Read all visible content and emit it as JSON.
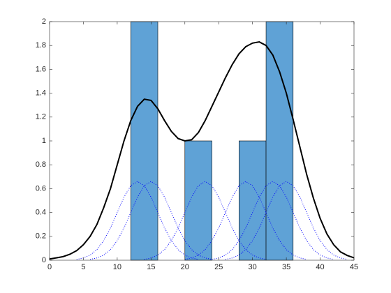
{
  "chart_data": {
    "type": "histogram",
    "bins": [
      12,
      16,
      20,
      24,
      28,
      32,
      36
    ],
    "counts": [
      2,
      0,
      1,
      0,
      1,
      2
    ],
    "color": "#5fa2d6",
    "density": {
      "color": "#000000",
      "x": [
        0,
        1,
        2,
        3,
        4,
        5,
        6,
        7,
        8,
        9,
        10,
        11,
        12,
        13,
        14,
        15,
        16,
        17,
        18,
        19,
        20,
        21,
        22,
        23,
        24,
        25,
        26,
        27,
        28,
        29,
        30,
        31,
        32,
        33,
        34,
        35,
        36,
        37,
        38,
        39,
        40,
        41,
        42,
        43,
        44,
        45
      ],
      "values": [
        0.01,
        0.02,
        0.03,
        0.05,
        0.08,
        0.13,
        0.2,
        0.3,
        0.44,
        0.6,
        0.8,
        1.0,
        1.17,
        1.29,
        1.35,
        1.34,
        1.27,
        1.17,
        1.08,
        1.02,
        1.0,
        1.01,
        1.07,
        1.17,
        1.29,
        1.41,
        1.53,
        1.64,
        1.73,
        1.79,
        1.82,
        1.83,
        1.8,
        1.72,
        1.58,
        1.4,
        1.18,
        0.95,
        0.72,
        0.52,
        0.35,
        0.22,
        0.13,
        0.07,
        0.04,
        0.02
      ]
    },
    "kernel_color": "#0000ff",
    "kernels": [
      {
        "x": [
          4,
          5,
          6,
          7,
          8,
          9,
          10,
          11,
          12,
          13,
          14,
          15,
          16,
          17,
          18,
          19,
          20,
          21,
          22
        ],
        "values": [
          0.007,
          0.019,
          0.043,
          0.089,
          0.164,
          0.27,
          0.4,
          0.529,
          0.625,
          0.66,
          0.625,
          0.529,
          0.4,
          0.27,
          0.164,
          0.089,
          0.043,
          0.019,
          0.007
        ]
      },
      {
        "x": [
          6,
          7,
          8,
          9,
          10,
          11,
          12,
          13,
          14,
          15,
          16,
          17,
          18,
          19,
          20,
          21,
          22,
          23,
          24
        ],
        "values": [
          0.007,
          0.019,
          0.043,
          0.089,
          0.164,
          0.27,
          0.4,
          0.529,
          0.625,
          0.66,
          0.625,
          0.529,
          0.4,
          0.27,
          0.164,
          0.089,
          0.043,
          0.019,
          0.007
        ]
      },
      {
        "x": [
          14,
          15,
          16,
          17,
          18,
          19,
          20,
          21,
          22,
          23,
          24,
          25,
          26,
          27,
          28,
          29,
          30,
          31,
          32
        ],
        "values": [
          0.007,
          0.019,
          0.043,
          0.089,
          0.164,
          0.27,
          0.4,
          0.529,
          0.625,
          0.66,
          0.625,
          0.529,
          0.4,
          0.27,
          0.164,
          0.089,
          0.043,
          0.019,
          0.007
        ]
      },
      {
        "x": [
          20,
          21,
          22,
          23,
          24,
          25,
          26,
          27,
          28,
          29,
          30,
          31,
          32,
          33,
          34,
          35,
          36,
          37,
          38
        ],
        "values": [
          0.007,
          0.019,
          0.043,
          0.089,
          0.164,
          0.27,
          0.4,
          0.529,
          0.625,
          0.66,
          0.625,
          0.529,
          0.4,
          0.27,
          0.164,
          0.089,
          0.043,
          0.019,
          0.007
        ]
      },
      {
        "x": [
          24,
          25,
          26,
          27,
          28,
          29,
          30,
          31,
          32,
          33,
          34,
          35,
          36,
          37,
          38,
          39,
          40,
          41,
          42
        ],
        "values": [
          0.007,
          0.019,
          0.043,
          0.089,
          0.164,
          0.27,
          0.4,
          0.529,
          0.625,
          0.66,
          0.625,
          0.529,
          0.4,
          0.27,
          0.164,
          0.089,
          0.043,
          0.019,
          0.007
        ]
      },
      {
        "x": [
          26,
          27,
          28,
          29,
          30,
          31,
          32,
          33,
          34,
          35,
          36,
          37,
          38,
          39,
          40,
          41,
          42,
          43,
          44
        ],
        "values": [
          0.007,
          0.019,
          0.043,
          0.089,
          0.164,
          0.27,
          0.4,
          0.529,
          0.625,
          0.66,
          0.625,
          0.529,
          0.4,
          0.27,
          0.164,
          0.089,
          0.043,
          0.019,
          0.007
        ]
      }
    ],
    "xlim": [
      0,
      45
    ],
    "xticks": [
      0,
      5,
      10,
      15,
      20,
      25,
      30,
      35,
      40,
      45
    ],
    "ylim": [
      0,
      2
    ],
    "yticks": [
      0,
      0.2,
      0.4,
      0.6,
      0.8,
      1,
      1.2,
      1.4,
      1.6,
      1.8,
      2
    ]
  }
}
